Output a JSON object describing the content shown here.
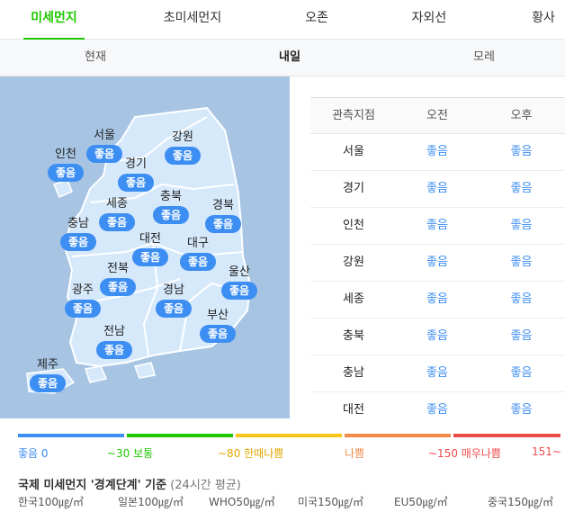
{
  "top_tabs": [
    {
      "label": "미세먼지",
      "active": true
    },
    {
      "label": "초미세먼지",
      "active": false
    },
    {
      "label": "오존",
      "active": false
    },
    {
      "label": "자외선",
      "active": false
    },
    {
      "label": "황사",
      "active": false
    }
  ],
  "day_tabs": [
    {
      "label": "현재",
      "active": false
    },
    {
      "label": "내일",
      "active": true
    },
    {
      "label": "모레",
      "active": false
    }
  ],
  "map": {
    "regions": [
      {
        "name": "서울",
        "status": "좋음"
      },
      {
        "name": "강원",
        "status": "좋음"
      },
      {
        "name": "인천",
        "status": "좋음"
      },
      {
        "name": "경기",
        "status": "좋음"
      },
      {
        "name": "충북",
        "status": "좋음"
      },
      {
        "name": "세종",
        "status": "좋음"
      },
      {
        "name": "경북",
        "status": "좋음"
      },
      {
        "name": "충남",
        "status": "좋음"
      },
      {
        "name": "대전",
        "status": "좋음"
      },
      {
        "name": "대구",
        "status": "좋음"
      },
      {
        "name": "전북",
        "status": "좋음"
      },
      {
        "name": "울산",
        "status": "좋음"
      },
      {
        "name": "광주",
        "status": "좋음"
      },
      {
        "name": "경남",
        "status": "좋음"
      },
      {
        "name": "부산",
        "status": "좋음"
      },
      {
        "name": "전남",
        "status": "좋음"
      },
      {
        "name": "제주",
        "status": "좋음"
      }
    ],
    "colors": {
      "sea": "#a7c5e3",
      "land": "#d6e9fb",
      "border": "#ffffff",
      "badge": "#3d8ef2"
    }
  },
  "table": {
    "headers": [
      "관측지점",
      "오전",
      "오후"
    ],
    "rows": [
      {
        "location": "서울",
        "am": "좋음",
        "pm": "좋음"
      },
      {
        "location": "경기",
        "am": "좋음",
        "pm": "좋음"
      },
      {
        "location": "인천",
        "am": "좋음",
        "pm": "좋음"
      },
      {
        "location": "강원",
        "am": "좋음",
        "pm": "좋음"
      },
      {
        "location": "세종",
        "am": "좋음",
        "pm": "좋음"
      },
      {
        "location": "충북",
        "am": "좋음",
        "pm": "좋음"
      },
      {
        "location": "충남",
        "am": "좋음",
        "pm": "좋음"
      },
      {
        "location": "대전",
        "am": "좋음",
        "pm": "좋음"
      }
    ]
  },
  "legend": {
    "levels": [
      {
        "label": "좋음 0",
        "color": "#3d8ef2"
      },
      {
        "label": "~30 보통",
        "color": "#1ec800"
      },
      {
        "label": "~80 한때나쁨",
        "color": "#f5c518"
      },
      {
        "label": "나쁨",
        "color": "#f28a48"
      },
      {
        "label": "~150 매우나쁨",
        "color": "#ef4a4a"
      },
      {
        "label": "151~",
        "color": "#ef4a4a"
      }
    ]
  },
  "standard": {
    "title": "국제 미세먼지 '경계단계' 기준",
    "note": "(24시간 평균)",
    "items": [
      "한국100㎍/㎥",
      "일본100㎍/㎥",
      "WHO50㎍/㎥",
      "미국150㎍/㎥",
      "EU50㎍/㎥",
      "중국150㎍/㎥"
    ]
  }
}
